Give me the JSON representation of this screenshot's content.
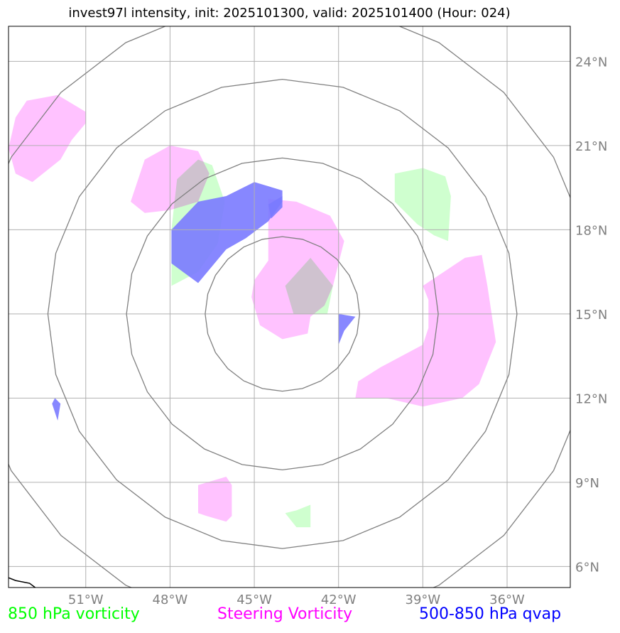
{
  "title": "invest97l intensity, init: 2025101300, valid: 2025101400 (Hour: 024)",
  "legend": [
    {
      "label": "850 hPa vorticity",
      "color": "#00ff00"
    },
    {
      "label": "Steering Vorticity",
      "color": "#ff00ff"
    },
    {
      "label": "500-850 hPa qvap",
      "color": "#0000ff"
    }
  ],
  "colors": {
    "vorticity_850": "#ccffcc",
    "steering_vorticity": "#ffbfff",
    "qvap": "#7a7aff",
    "range_rings": "#808080",
    "grid": "#b0b0b0",
    "tick_labels": "#808080",
    "coastline": "#000000"
  },
  "map": {
    "lon_range": [
      -53.75,
      -33.75
    ],
    "lat_range": [
      5.25,
      25.25
    ],
    "center_lon": -44,
    "center_lat": 15,
    "lon_ticks": [
      -51,
      -48,
      -45,
      -42,
      -39,
      -36
    ],
    "lat_ticks": [
      6,
      9,
      12,
      15,
      18,
      21,
      24
    ],
    "lon_tick_labels": [
      "51°W",
      "48°W",
      "45°W",
      "42°W",
      "39°W",
      "36°W"
    ],
    "lat_tick_labels": [
      "6°N",
      "9°N",
      "12°N",
      "15°N",
      "18°N",
      "21°N",
      "24°N"
    ],
    "range_ring_radii_deg": [
      2.75,
      5.55,
      8.35,
      11.15
    ]
  },
  "fields": {
    "vorticity_850": [
      [
        [
          -47.75,
          19.8
        ],
        [
          -47.0,
          20.5
        ],
        [
          -46.5,
          20.3
        ],
        [
          -46.05,
          19.0
        ],
        [
          -46.3,
          17.5
        ],
        [
          -47.0,
          16.5
        ],
        [
          -47.95,
          16.0
        ],
        [
          -47.95,
          18.0
        ]
      ],
      [
        [
          -43.9,
          16.0
        ],
        [
          -43.0,
          17.0
        ],
        [
          -42.2,
          16.0
        ],
        [
          -42.4,
          15.0
        ],
        [
          -43.0,
          15.0
        ],
        [
          -43.6,
          15.0
        ]
      ],
      [
        [
          -40.0,
          20.0
        ],
        [
          -39.0,
          20.2
        ],
        [
          -38.2,
          19.9
        ],
        [
          -38.0,
          19.2
        ],
        [
          -38.1,
          17.6
        ],
        [
          -38.6,
          17.8
        ],
        [
          -39.2,
          18.2
        ],
        [
          -40.0,
          19.0
        ]
      ],
      [
        [
          -43.5,
          8.0
        ],
        [
          -43.0,
          8.2
        ],
        [
          -43.0,
          7.4
        ],
        [
          -43.5,
          7.4
        ],
        [
          -43.9,
          7.9
        ]
      ]
    ],
    "steering_vorticity": [
      [
        [
          -53.75,
          20.9
        ],
        [
          -53.5,
          22.0
        ],
        [
          -53.1,
          22.6
        ],
        [
          -52.0,
          22.8
        ],
        [
          -51.0,
          22.2
        ],
        [
          -51.0,
          21.8
        ],
        [
          -51.5,
          21.2
        ],
        [
          -51.9,
          20.5
        ],
        [
          -52.9,
          19.7
        ],
        [
          -53.5,
          20.0
        ]
      ],
      [
        [
          -48.9,
          20.5
        ],
        [
          -48.0,
          21.0
        ],
        [
          -47.0,
          20.8
        ],
        [
          -46.6,
          20.0
        ],
        [
          -47.0,
          19.0
        ],
        [
          -48.0,
          18.7
        ],
        [
          -48.9,
          18.6
        ],
        [
          -49.4,
          19.0
        ]
      ],
      [
        [
          -44.5,
          19.1
        ],
        [
          -43.5,
          19.0
        ],
        [
          -42.3,
          18.5
        ],
        [
          -41.8,
          17.6
        ],
        [
          -42.2,
          16.0
        ],
        [
          -42.5,
          15.3
        ],
        [
          -43.0,
          14.9
        ],
        [
          -43.1,
          14.3
        ],
        [
          -44.0,
          14.1
        ],
        [
          -44.8,
          14.6
        ],
        [
          -45.1,
          15.6
        ],
        [
          -45.0,
          16.2
        ],
        [
          -44.5,
          16.9
        ],
        [
          -44.5,
          18.0
        ]
      ],
      [
        [
          -39.0,
          16.0
        ],
        [
          -37.5,
          17.0
        ],
        [
          -36.9,
          17.1
        ],
        [
          -36.7,
          16.0
        ],
        [
          -36.4,
          14.0
        ],
        [
          -37.0,
          12.5
        ],
        [
          -37.6,
          12.0
        ],
        [
          -39.0,
          11.7
        ],
        [
          -40.3,
          12.0
        ],
        [
          -41.4,
          12.0
        ],
        [
          -41.3,
          12.6
        ],
        [
          -40.5,
          13.1
        ],
        [
          -39.0,
          13.9
        ],
        [
          -38.8,
          14.5
        ],
        [
          -38.8,
          15.5
        ]
      ],
      [
        [
          -47.0,
          8.9
        ],
        [
          -46.0,
          9.2
        ],
        [
          -45.8,
          8.9
        ],
        [
          -45.8,
          7.8
        ],
        [
          -46.0,
          7.6
        ],
        [
          -46.7,
          7.8
        ],
        [
          -47.0,
          7.9
        ]
      ]
    ],
    "qvap": [
      [
        [
          -47.95,
          18.0
        ],
        [
          -47.0,
          19.0
        ],
        [
          -46.0,
          19.2
        ],
        [
          -45.0,
          19.7
        ],
        [
          -44.0,
          19.4
        ],
        [
          -44.0,
          19.0
        ],
        [
          -44.5,
          18.3
        ],
        [
          -45.3,
          17.7
        ],
        [
          -46.0,
          17.3
        ],
        [
          -47.0,
          16.1
        ],
        [
          -47.95,
          16.8
        ]
      ],
      [
        [
          -44.5,
          18.9
        ],
        [
          -44.0,
          19.2
        ],
        [
          -44.0,
          18.8
        ],
        [
          -44.4,
          18.4
        ]
      ],
      [
        [
          -42.0,
          15.0
        ],
        [
          -41.4,
          14.9
        ],
        [
          -41.8,
          14.4
        ],
        [
          -42.0,
          13.9
        ]
      ],
      [
        [
          -52.1,
          12.0
        ],
        [
          -51.9,
          11.8
        ],
        [
          -52.0,
          11.2
        ],
        [
          -52.2,
          11.8
        ]
      ]
    ]
  },
  "coastline": [
    [
      -53.75,
      5.6
    ],
    [
      -53.5,
      5.5
    ],
    [
      -53.0,
      5.4
    ],
    [
      -52.8,
      5.25
    ]
  ]
}
